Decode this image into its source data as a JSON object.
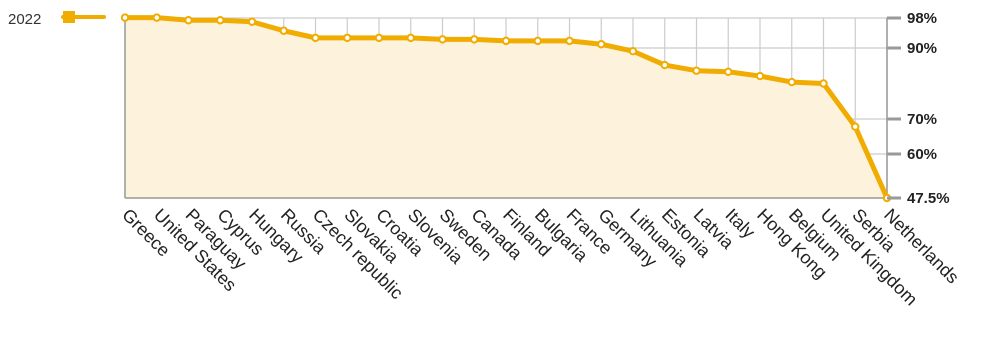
{
  "chart_data": {
    "type": "area",
    "title": "",
    "xlabel": "",
    "ylabel": "",
    "legend": {
      "placement": "top-left",
      "entries": [
        "2022"
      ]
    },
    "series": [
      {
        "name": "2022",
        "color": "#f0ac00",
        "values": [
          98.1,
          98.1,
          97.4,
          97.4,
          97.0,
          94.6,
          92.7,
          92.7,
          92.7,
          92.7,
          92.3,
          92.3,
          91.9,
          91.9,
          91.9,
          91.0,
          89.1,
          85.2,
          83.6,
          83.3,
          82.1,
          80.4,
          80.0,
          67.8,
          47.5
        ]
      }
    ],
    "categories": [
      "Greece",
      "United States",
      "Paraguay",
      "Cyprus",
      "Hungary",
      "Russia",
      "Czech republic",
      "Slovakia",
      "Croatia",
      "Slovenia",
      "Sweden",
      "Canada",
      "Finland",
      "Bulgaria",
      "France",
      "Germany",
      "Lithuania",
      "Estonia",
      "Latvia",
      "Italy",
      "Hong Kong",
      "Belgium",
      "United Kingdom",
      "Serbia",
      "Netherlands"
    ],
    "y_ticks": [
      {
        "value": 98,
        "label": "98%"
      },
      {
        "value": 90,
        "label": "90%"
      },
      {
        "value": 70,
        "label": "70%"
      },
      {
        "value": 60,
        "label": "60%"
      },
      {
        "value": 47.5,
        "label": "47.5%"
      }
    ],
    "ylim": [
      47.5,
      98
    ],
    "grid": true,
    "fill_color": "#fdf3dc",
    "grid_color": "#cccccc",
    "axis_color": "#999999"
  }
}
